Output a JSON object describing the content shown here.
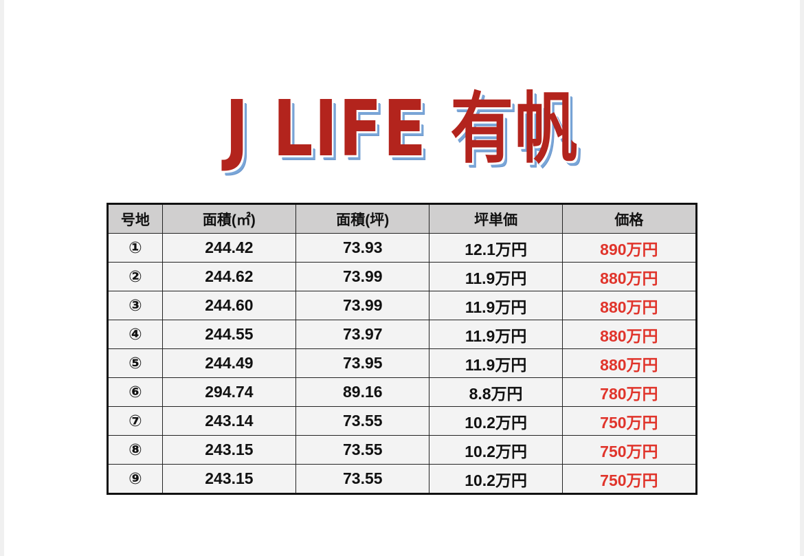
{
  "title": "J LIFE 有帆",
  "colors": {
    "title": "#b3241d",
    "title_shadow": "#7aa6d8",
    "price": "#e0342b",
    "header_bg": "#d0cfcf"
  },
  "table": {
    "headers": [
      "号地",
      "面積(㎡)",
      "面積(坪)",
      "坪単価",
      "価格"
    ],
    "rows": [
      [
        "①",
        "244.42",
        "73.93",
        "12.1万円",
        "890万円"
      ],
      [
        "②",
        "244.62",
        "73.99",
        "11.9万円",
        "880万円"
      ],
      [
        "③",
        "244.60",
        "73.99",
        "11.9万円",
        "880万円"
      ],
      [
        "④",
        "244.55",
        "73.97",
        "11.9万円",
        "880万円"
      ],
      [
        "⑤",
        "244.49",
        "73.95",
        "11.9万円",
        "880万円"
      ],
      [
        "⑥",
        "294.74",
        "89.16",
        "8.8万円",
        "780万円"
      ],
      [
        "⑦",
        "243.14",
        "73.55",
        "10.2万円",
        "750万円"
      ],
      [
        "⑧",
        "243.15",
        "73.55",
        "10.2万円",
        "750万円"
      ],
      [
        "⑨",
        "243.15",
        "73.55",
        "10.2万円",
        "750万円"
      ]
    ]
  }
}
